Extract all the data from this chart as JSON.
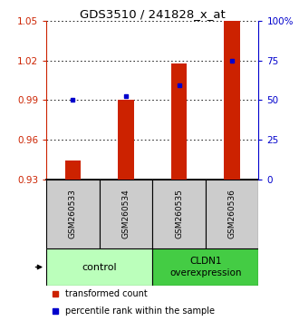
{
  "title": "GDS3510 / 241828_x_at",
  "samples": [
    "GSM260533",
    "GSM260534",
    "GSM260535",
    "GSM260536"
  ],
  "red_values": [
    0.944,
    0.99,
    1.018,
    1.05
  ],
  "blue_values": [
    0.99,
    0.993,
    1.001,
    1.02
  ],
  "ylim_left": [
    0.93,
    1.05
  ],
  "yticks_left": [
    0.93,
    0.96,
    0.99,
    1.02,
    1.05
  ],
  "yticks_right": [
    0,
    25,
    50,
    75,
    100
  ],
  "ylim_right": [
    0,
    100
  ],
  "bar_color": "#cc2200",
  "dot_color": "#0000cc",
  "ctrl_color": "#bbffbb",
  "cldn_color": "#44cc44",
  "sample_box_color": "#cccccc",
  "legend_red": "transformed count",
  "legend_blue": "percentile rank within the sample",
  "bar_width": 0.3
}
